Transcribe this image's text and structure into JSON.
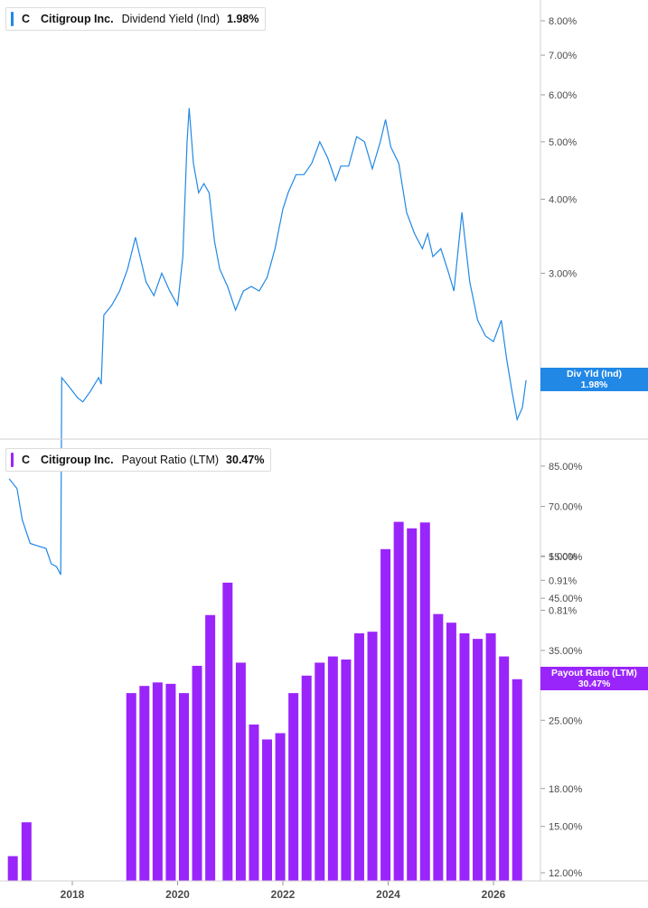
{
  "colors": {
    "dividend_line": "#2188e6",
    "payout_bars": "#9a25fb",
    "axis_text": "#4a4a4a",
    "divider": "#d0d0d0"
  },
  "top_panel": {
    "ticker": "C",
    "company": "Citigroup Inc.",
    "metric": "Dividend Yield (Ind)",
    "value": "1.98%",
    "tag_label": "Div Yld (Ind)",
    "tag_value": "1.98%"
  },
  "bottom_panel": {
    "ticker": "C",
    "company": "Citigroup Inc.",
    "metric": "Payout Ratio (LTM)",
    "value": "30.47%",
    "tag_label": "Payout Ratio (LTM)",
    "tag_value": "30.47%"
  },
  "chart_data": [
    {
      "type": "line",
      "series_name": "Dividend Yield (Ind)",
      "y_scale": "log",
      "y_ticks": [
        "8.00%",
        "7.00%",
        "6.00%",
        "5.00%",
        "4.00%",
        "3.00%",
        "1.00%",
        "0.91%",
        "0.81%"
      ],
      "y_tick_values": [
        8,
        7,
        6,
        5,
        4,
        3,
        1,
        0.91,
        0.81
      ],
      "x": [
        2016.8,
        2016.95,
        2017.05,
        2017.2,
        2017.35,
        2017.5,
        2017.6,
        2017.7,
        2017.78,
        2017.8,
        2017.9,
        2018.0,
        2018.1,
        2018.2,
        2018.35,
        2018.5,
        2018.55,
        2018.6,
        2018.75,
        2018.9,
        2019.05,
        2019.2,
        2019.4,
        2019.55,
        2019.7,
        2019.85,
        2020.0,
        2020.1,
        2020.18,
        2020.22,
        2020.3,
        2020.4,
        2020.5,
        2020.6,
        2020.7,
        2020.8,
        2020.95,
        2021.1,
        2021.25,
        2021.4,
        2021.55,
        2021.7,
        2021.85,
        2022.0,
        2022.1,
        2022.25,
        2022.4,
        2022.55,
        2022.7,
        2022.85,
        2023.0,
        2023.1,
        2023.25,
        2023.4,
        2023.55,
        2023.7,
        2023.85,
        2023.95,
        2024.05,
        2024.2,
        2024.35,
        2024.5,
        2024.65,
        2024.75,
        2024.85,
        2025.0,
        2025.15,
        2025.25,
        2025.4,
        2025.55,
        2025.7,
        2025.85,
        2026.0,
        2026.15,
        2026.25,
        2026.35,
        2026.45,
        2026.55,
        2026.62
      ],
      "y": [
        1.35,
        1.3,
        1.15,
        1.05,
        1.04,
        1.03,
        0.97,
        0.96,
        0.93,
        2.0,
        1.95,
        1.9,
        1.85,
        1.82,
        1.9,
        2.0,
        1.95,
        2.55,
        2.65,
        2.8,
        3.05,
        3.45,
        2.9,
        2.75,
        3.0,
        2.8,
        2.65,
        3.2,
        5.0,
        5.7,
        4.6,
        4.1,
        4.25,
        4.1,
        3.4,
        3.05,
        2.85,
        2.6,
        2.8,
        2.85,
        2.8,
        2.95,
        3.3,
        3.85,
        4.1,
        4.4,
        4.4,
        4.6,
        5.0,
        4.7,
        4.3,
        4.55,
        4.55,
        5.1,
        5.0,
        4.5,
        5.0,
        5.45,
        4.9,
        4.6,
        3.8,
        3.5,
        3.3,
        3.5,
        3.2,
        3.3,
        3.0,
        2.8,
        3.8,
        2.9,
        2.5,
        2.35,
        2.3,
        2.5,
        2.15,
        1.9,
        1.7,
        1.78,
        1.98
      ]
    },
    {
      "type": "bar",
      "series_name": "Payout Ratio (LTM)",
      "y_scale": "log",
      "y_ticks": [
        "85.00%",
        "70.00%",
        "55.00%",
        "45.00%",
        "35.00%",
        "25.00%",
        "18.00%",
        "15.00%",
        "12.00%"
      ],
      "y_tick_values": [
        85,
        70,
        55,
        45,
        35,
        25,
        18,
        15,
        12
      ],
      "x_ticks": [
        "2018",
        "2020",
        "2022",
        "2024",
        "2026"
      ],
      "x_tick_values": [
        2018,
        2020,
        2022,
        2024,
        2026
      ],
      "x": [
        2016.87,
        2017.13,
        2019.12,
        2019.37,
        2019.62,
        2019.87,
        2020.12,
        2020.37,
        2020.62,
        2020.95,
        2021.2,
        2021.45,
        2021.7,
        2021.95,
        2022.2,
        2022.45,
        2022.7,
        2022.95,
        2023.2,
        2023.45,
        2023.7,
        2023.95,
        2024.2,
        2024.45,
        2024.7,
        2024.95,
        2025.2,
        2025.45,
        2025.7,
        2025.95,
        2026.2,
        2026.45
      ],
      "y": [
        13.0,
        15.3,
        28.5,
        29.5,
        30.0,
        29.8,
        28.5,
        32.5,
        41.5,
        48.5,
        33.0,
        24.5,
        22.8,
        23.5,
        28.5,
        31.0,
        33.0,
        34.0,
        33.5,
        38.0,
        38.3,
        57.0,
        65.0,
        63.0,
        64.8,
        41.7,
        40.0,
        38.0,
        37.0,
        38.0,
        34.0,
        30.47
      ]
    }
  ]
}
